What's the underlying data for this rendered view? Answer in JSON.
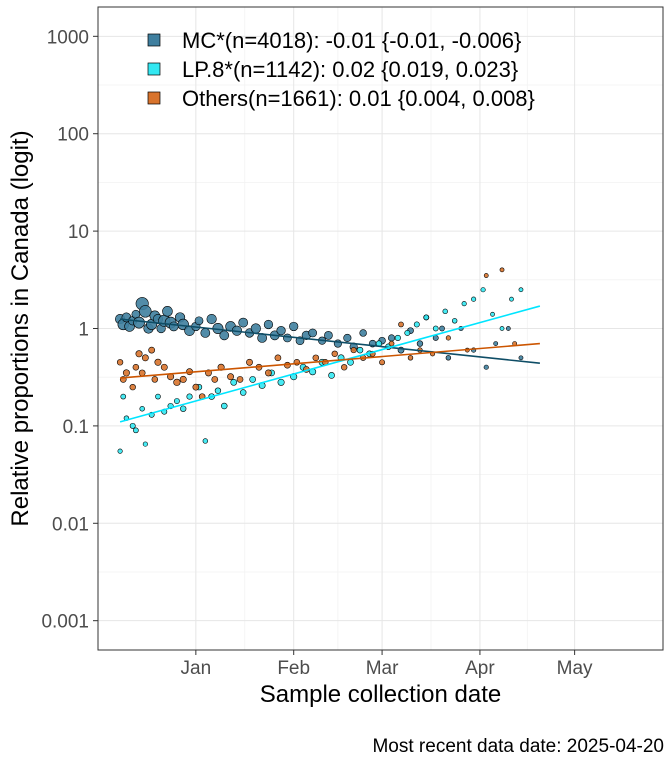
{
  "chart_data": {
    "type": "scatter",
    "title": "",
    "ylabel": "Relative proportions in Canada (logit)",
    "xlabel": "Sample collection date",
    "y_scale": "log10",
    "ylim": [
      0.0005,
      2000
    ],
    "xlim": [
      "2024-12-01",
      "2025-05-29"
    ],
    "y_ticks": [
      {
        "value": 0.001,
        "label": "0.001"
      },
      {
        "value": 0.01,
        "label": "0.01"
      },
      {
        "value": 0.1,
        "label": "0.1"
      },
      {
        "value": 1,
        "label": "1"
      },
      {
        "value": 10,
        "label": "10"
      },
      {
        "value": 100,
        "label": "100"
      },
      {
        "value": 1000,
        "label": "1000"
      }
    ],
    "x_ticks": [
      {
        "value": "2025-01-01",
        "label": "Jan"
      },
      {
        "value": "2025-02-01",
        "label": "Feb"
      },
      {
        "value": "2025-03-01",
        "label": "Mar"
      },
      {
        "value": "2025-04-01",
        "label": "Apr"
      },
      {
        "value": "2025-05-01",
        "label": "May"
      }
    ],
    "grid": true,
    "legend_position": "top-left inside",
    "series": [
      {
        "name": "MC*(n=4018): -0.01 {-0.01, -0.006}",
        "color": "#3f7f9f",
        "line_color": "#0e4d66",
        "fit": [
          {
            "x": "2024-12-08",
            "y": 1.25
          },
          {
            "x": "2025-04-20",
            "y": 0.44
          }
        ],
        "points": [
          {
            "x": "2024-12-08",
            "y": 1.25,
            "n": 40
          },
          {
            "x": "2024-12-09",
            "y": 1.1,
            "n": 55
          },
          {
            "x": "2024-12-10",
            "y": 1.3,
            "n": 35
          },
          {
            "x": "2024-12-11",
            "y": 1.05,
            "n": 45
          },
          {
            "x": "2024-12-12",
            "y": 1.2,
            "n": 30
          },
          {
            "x": "2024-12-13",
            "y": 1.4,
            "n": 25
          },
          {
            "x": "2024-12-14",
            "y": 1.15,
            "n": 60
          },
          {
            "x": "2024-12-15",
            "y": 1.8,
            "n": 80
          },
          {
            "x": "2024-12-16",
            "y": 1.5,
            "n": 70
          },
          {
            "x": "2024-12-17",
            "y": 1.0,
            "n": 40
          },
          {
            "x": "2024-12-18",
            "y": 1.1,
            "n": 50
          },
          {
            "x": "2024-12-19",
            "y": 1.35,
            "n": 45
          },
          {
            "x": "2024-12-20",
            "y": 1.25,
            "n": 40
          },
          {
            "x": "2024-12-21",
            "y": 1.0,
            "n": 30
          },
          {
            "x": "2024-12-22",
            "y": 1.2,
            "n": 65
          },
          {
            "x": "2024-12-23",
            "y": 1.5,
            "n": 45
          },
          {
            "x": "2024-12-24",
            "y": 1.15,
            "n": 60
          },
          {
            "x": "2024-12-25",
            "y": 1.05,
            "n": 35
          },
          {
            "x": "2024-12-27",
            "y": 1.3,
            "n": 40
          },
          {
            "x": "2024-12-28",
            "y": 1.1,
            "n": 55
          },
          {
            "x": "2024-12-30",
            "y": 0.95,
            "n": 45
          },
          {
            "x": "2025-01-01",
            "y": 1.05,
            "n": 30
          },
          {
            "x": "2025-01-02",
            "y": 1.2,
            "n": 25
          },
          {
            "x": "2025-01-04",
            "y": 0.9,
            "n": 35
          },
          {
            "x": "2025-01-06",
            "y": 1.25,
            "n": 40
          },
          {
            "x": "2025-01-08",
            "y": 1.0,
            "n": 50
          },
          {
            "x": "2025-01-10",
            "y": 0.85,
            "n": 35
          },
          {
            "x": "2025-01-12",
            "y": 1.05,
            "n": 45
          },
          {
            "x": "2025-01-14",
            "y": 0.95,
            "n": 40
          },
          {
            "x": "2025-01-16",
            "y": 1.15,
            "n": 35
          },
          {
            "x": "2025-01-18",
            "y": 0.9,
            "n": 30
          },
          {
            "x": "2025-01-20",
            "y": 1.0,
            "n": 40
          },
          {
            "x": "2025-01-22",
            "y": 0.8,
            "n": 35
          },
          {
            "x": "2025-01-24",
            "y": 1.1,
            "n": 30
          },
          {
            "x": "2025-01-26",
            "y": 0.85,
            "n": 35
          },
          {
            "x": "2025-01-28",
            "y": 0.95,
            "n": 30
          },
          {
            "x": "2025-01-30",
            "y": 0.8,
            "n": 25
          },
          {
            "x": "2025-02-01",
            "y": 1.05,
            "n": 30
          },
          {
            "x": "2025-02-03",
            "y": 0.75,
            "n": 25
          },
          {
            "x": "2025-02-05",
            "y": 0.85,
            "n": 30
          },
          {
            "x": "2025-02-07",
            "y": 0.9,
            "n": 25
          },
          {
            "x": "2025-02-10",
            "y": 0.75,
            "n": 20
          },
          {
            "x": "2025-02-12",
            "y": 0.85,
            "n": 25
          },
          {
            "x": "2025-02-15",
            "y": 0.7,
            "n": 20
          },
          {
            "x": "2025-02-18",
            "y": 0.8,
            "n": 20
          },
          {
            "x": "2025-02-20",
            "y": 0.65,
            "n": 20
          },
          {
            "x": "2025-02-23",
            "y": 0.9,
            "n": 15
          },
          {
            "x": "2025-02-26",
            "y": 0.7,
            "n": 15
          },
          {
            "x": "2025-03-01",
            "y": 0.75,
            "n": 15
          },
          {
            "x": "2025-03-04",
            "y": 0.8,
            "n": 12
          },
          {
            "x": "2025-03-07",
            "y": 0.6,
            "n": 10
          },
          {
            "x": "2025-03-10",
            "y": 0.95,
            "n": 10
          },
          {
            "x": "2025-03-13",
            "y": 0.7,
            "n": 8
          },
          {
            "x": "2025-03-15",
            "y": 1.3,
            "n": 6
          },
          {
            "x": "2025-03-18",
            "y": 0.8,
            "n": 6
          },
          {
            "x": "2025-03-20",
            "y": 1.0,
            "n": 5
          },
          {
            "x": "2025-03-22",
            "y": 0.5,
            "n": 4
          },
          {
            "x": "2025-03-26",
            "y": 1.0,
            "n": 3
          },
          {
            "x": "2025-03-30",
            "y": 0.6,
            "n": 3
          },
          {
            "x": "2025-04-03",
            "y": 0.4,
            "n": 3
          },
          {
            "x": "2025-04-06",
            "y": 0.7,
            "n": 2
          },
          {
            "x": "2025-04-10",
            "y": 1.0,
            "n": 2
          },
          {
            "x": "2025-04-14",
            "y": 0.5,
            "n": 2
          }
        ]
      },
      {
        "name": "LP.8*(n=1142): 0.02 {0.019, 0.023}",
        "color": "#33e8f2",
        "line_color": "#00e5ff",
        "fit": [
          {
            "x": "2024-12-08",
            "y": 0.11
          },
          {
            "x": "2025-04-20",
            "y": 1.7
          }
        ],
        "points": [
          {
            "x": "2024-12-08",
            "y": 0.055,
            "n": 3
          },
          {
            "x": "2024-12-09",
            "y": 0.2,
            "n": 5
          },
          {
            "x": "2024-12-10",
            "y": 0.12,
            "n": 4
          },
          {
            "x": "2024-12-12",
            "y": 0.1,
            "n": 6
          },
          {
            "x": "2024-12-13",
            "y": 0.09,
            "n": 5
          },
          {
            "x": "2024-12-15",
            "y": 0.15,
            "n": 4
          },
          {
            "x": "2024-12-16",
            "y": 0.065,
            "n": 3
          },
          {
            "x": "2024-12-18",
            "y": 0.13,
            "n": 6
          },
          {
            "x": "2024-12-20",
            "y": 0.2,
            "n": 5
          },
          {
            "x": "2024-12-22",
            "y": 0.14,
            "n": 6
          },
          {
            "x": "2024-12-24",
            "y": 0.16,
            "n": 7
          },
          {
            "x": "2024-12-26",
            "y": 0.18,
            "n": 6
          },
          {
            "x": "2024-12-28",
            "y": 0.15,
            "n": 8
          },
          {
            "x": "2024-12-30",
            "y": 0.2,
            "n": 7
          },
          {
            "x": "2025-01-02",
            "y": 0.25,
            "n": 8
          },
          {
            "x": "2025-01-04",
            "y": 0.07,
            "n": 4
          },
          {
            "x": "2025-01-06",
            "y": 0.2,
            "n": 9
          },
          {
            "x": "2025-01-08",
            "y": 0.23,
            "n": 8
          },
          {
            "x": "2025-01-10",
            "y": 0.16,
            "n": 9
          },
          {
            "x": "2025-01-13",
            "y": 0.28,
            "n": 10
          },
          {
            "x": "2025-01-16",
            "y": 0.22,
            "n": 9
          },
          {
            "x": "2025-01-19",
            "y": 0.3,
            "n": 10
          },
          {
            "x": "2025-01-22",
            "y": 0.26,
            "n": 11
          },
          {
            "x": "2025-01-25",
            "y": 0.35,
            "n": 10
          },
          {
            "x": "2025-01-28",
            "y": 0.28,
            "n": 12
          },
          {
            "x": "2025-02-01",
            "y": 0.32,
            "n": 12
          },
          {
            "x": "2025-02-04",
            "y": 0.4,
            "n": 11
          },
          {
            "x": "2025-02-07",
            "y": 0.36,
            "n": 12
          },
          {
            "x": "2025-02-10",
            "y": 0.45,
            "n": 11
          },
          {
            "x": "2025-02-13",
            "y": 0.33,
            "n": 10
          },
          {
            "x": "2025-02-16",
            "y": 0.5,
            "n": 11
          },
          {
            "x": "2025-02-19",
            "y": 0.45,
            "n": 10
          },
          {
            "x": "2025-02-22",
            "y": 0.6,
            "n": 9
          },
          {
            "x": "2025-02-25",
            "y": 0.55,
            "n": 9
          },
          {
            "x": "2025-02-28",
            "y": 0.7,
            "n": 8
          },
          {
            "x": "2025-03-03",
            "y": 0.65,
            "n": 8
          },
          {
            "x": "2025-03-06",
            "y": 0.8,
            "n": 7
          },
          {
            "x": "2025-03-09",
            "y": 0.9,
            "n": 6
          },
          {
            "x": "2025-03-12",
            "y": 1.1,
            "n": 6
          },
          {
            "x": "2025-03-15",
            "y": 1.3,
            "n": 5
          },
          {
            "x": "2025-03-18",
            "y": 1.0,
            "n": 5
          },
          {
            "x": "2025-03-21",
            "y": 1.5,
            "n": 4
          },
          {
            "x": "2025-03-24",
            "y": 1.2,
            "n": 4
          },
          {
            "x": "2025-03-27",
            "y": 1.8,
            "n": 3
          },
          {
            "x": "2025-03-30",
            "y": 2.0,
            "n": 3
          },
          {
            "x": "2025-04-02",
            "y": 2.5,
            "n": 3
          },
          {
            "x": "2025-04-05",
            "y": 1.4,
            "n": 2
          },
          {
            "x": "2025-04-08",
            "y": 1.0,
            "n": 2
          },
          {
            "x": "2025-04-11",
            "y": 2.0,
            "n": 2
          },
          {
            "x": "2025-04-14",
            "y": 2.5,
            "n": 2
          }
        ]
      },
      {
        "name": "Others(n=1661): 0.01 {0.004, 0.008}",
        "color": "#d8732c",
        "line_color": "#cc5500",
        "fit": [
          {
            "x": "2024-12-08",
            "y": 0.31
          },
          {
            "x": "2025-04-20",
            "y": 0.7
          }
        ],
        "points": [
          {
            "x": "2024-12-08",
            "y": 0.45,
            "n": 8
          },
          {
            "x": "2024-12-09",
            "y": 0.3,
            "n": 10
          },
          {
            "x": "2024-12-10",
            "y": 0.35,
            "n": 12
          },
          {
            "x": "2024-12-12",
            "y": 0.25,
            "n": 8
          },
          {
            "x": "2024-12-13",
            "y": 0.4,
            "n": 9
          },
          {
            "x": "2024-12-14",
            "y": 0.55,
            "n": 12
          },
          {
            "x": "2024-12-15",
            "y": 0.35,
            "n": 10
          },
          {
            "x": "2024-12-16",
            "y": 0.5,
            "n": 11
          },
          {
            "x": "2024-12-18",
            "y": 0.6,
            "n": 10
          },
          {
            "x": "2024-12-19",
            "y": 0.3,
            "n": 9
          },
          {
            "x": "2024-12-20",
            "y": 0.45,
            "n": 12
          },
          {
            "x": "2024-12-22",
            "y": 0.4,
            "n": 11
          },
          {
            "x": "2024-12-24",
            "y": 0.32,
            "n": 12
          },
          {
            "x": "2024-12-26",
            "y": 0.28,
            "n": 13
          },
          {
            "x": "2024-12-28",
            "y": 0.3,
            "n": 12
          },
          {
            "x": "2024-12-30",
            "y": 0.36,
            "n": 11
          },
          {
            "x": "2025-01-01",
            "y": 0.25,
            "n": 10
          },
          {
            "x": "2025-01-03",
            "y": 0.2,
            "n": 9
          },
          {
            "x": "2025-01-05",
            "y": 0.35,
            "n": 11
          },
          {
            "x": "2025-01-07",
            "y": 0.3,
            "n": 10
          },
          {
            "x": "2025-01-09",
            "y": 0.4,
            "n": 12
          },
          {
            "x": "2025-01-12",
            "y": 0.32,
            "n": 11
          },
          {
            "x": "2025-01-15",
            "y": 0.3,
            "n": 10
          },
          {
            "x": "2025-01-18",
            "y": 0.45,
            "n": 11
          },
          {
            "x": "2025-01-21",
            "y": 0.4,
            "n": 10
          },
          {
            "x": "2025-01-24",
            "y": 0.35,
            "n": 11
          },
          {
            "x": "2025-01-27",
            "y": 0.5,
            "n": 10
          },
          {
            "x": "2025-01-30",
            "y": 0.42,
            "n": 10
          },
          {
            "x": "2025-02-02",
            "y": 0.45,
            "n": 9
          },
          {
            "x": "2025-02-05",
            "y": 0.38,
            "n": 10
          },
          {
            "x": "2025-02-08",
            "y": 0.5,
            "n": 9
          },
          {
            "x": "2025-02-11",
            "y": 0.45,
            "n": 9
          },
          {
            "x": "2025-02-14",
            "y": 0.55,
            "n": 8
          },
          {
            "x": "2025-02-17",
            "y": 0.4,
            "n": 8
          },
          {
            "x": "2025-02-20",
            "y": 0.6,
            "n": 7
          },
          {
            "x": "2025-02-23",
            "y": 0.5,
            "n": 7
          },
          {
            "x": "2025-02-26",
            "y": 0.55,
            "n": 6
          },
          {
            "x": "2025-03-01",
            "y": 0.45,
            "n": 6
          },
          {
            "x": "2025-03-04",
            "y": 0.7,
            "n": 5
          },
          {
            "x": "2025-03-07",
            "y": 1.1,
            "n": 5
          },
          {
            "x": "2025-03-10",
            "y": 0.5,
            "n": 4
          },
          {
            "x": "2025-03-13",
            "y": 0.6,
            "n": 4
          },
          {
            "x": "2025-03-17",
            "y": 0.55,
            "n": 3
          },
          {
            "x": "2025-03-22",
            "y": 0.8,
            "n": 3
          },
          {
            "x": "2025-03-28",
            "y": 0.6,
            "n": 2
          },
          {
            "x": "2025-04-03",
            "y": 3.5,
            "n": 2
          },
          {
            "x": "2025-04-08",
            "y": 4.0,
            "n": 2
          },
          {
            "x": "2025-04-12",
            "y": 0.7,
            "n": 2
          }
        ]
      }
    ],
    "footnote": "Most recent data date: 2025-04-20"
  }
}
